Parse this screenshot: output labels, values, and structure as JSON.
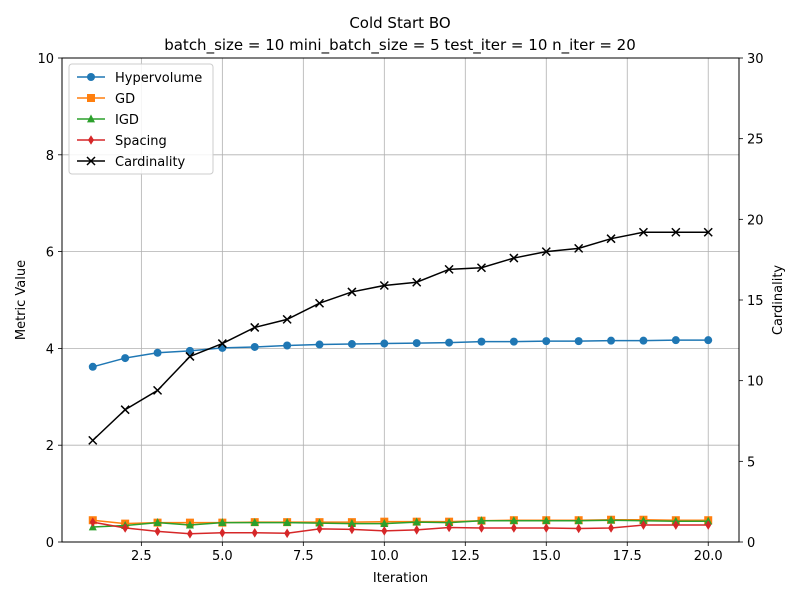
{
  "chart_data": {
    "type": "line",
    "title": "Cold Start BO",
    "subtitle": "batch_size = 10 mini_batch_size = 5 test_iter = 10 n_iter = 20",
    "xlabel": "Iteration",
    "ylabel": "Metric Value",
    "y2label": "Cardinality",
    "xlim": [
      0.05,
      20.95
    ],
    "ylim": [
      0,
      10
    ],
    "y2lim": [
      0,
      30
    ],
    "xticks": [
      2.5,
      5.0,
      7.5,
      10.0,
      12.5,
      15.0,
      17.5,
      20.0
    ],
    "xtick_labels": [
      "2.5",
      "5.0",
      "7.5",
      "10.0",
      "12.5",
      "15.0",
      "17.5",
      "20.0"
    ],
    "yticks": [
      0,
      2,
      4,
      6,
      8,
      10
    ],
    "ytick_labels": [
      "0",
      "2",
      "4",
      "6",
      "8",
      "10"
    ],
    "y2ticks": [
      0,
      5,
      10,
      15,
      20,
      25,
      30
    ],
    "y2tick_labels": [
      "0",
      "5",
      "10",
      "15",
      "20",
      "25",
      "30"
    ],
    "grid": true,
    "legend_position": "top-left",
    "x": [
      1,
      2,
      3,
      4,
      5,
      6,
      7,
      8,
      9,
      10,
      11,
      12,
      13,
      14,
      15,
      16,
      17,
      18,
      19,
      20
    ],
    "series": [
      {
        "name": "Hypervolume",
        "axis": "left",
        "color": "#1f77b4",
        "marker": "circle",
        "values": [
          3.62,
          3.8,
          3.91,
          3.95,
          4.01,
          4.03,
          4.06,
          4.08,
          4.09,
          4.1,
          4.11,
          4.12,
          4.14,
          4.14,
          4.15,
          4.15,
          4.16,
          4.16,
          4.17,
          4.17
        ]
      },
      {
        "name": "GD",
        "axis": "left",
        "color": "#ff7f0e",
        "marker": "square",
        "values": [
          0.45,
          0.38,
          0.4,
          0.4,
          0.4,
          0.41,
          0.41,
          0.41,
          0.41,
          0.42,
          0.42,
          0.42,
          0.44,
          0.45,
          0.45,
          0.45,
          0.46,
          0.46,
          0.45,
          0.45
        ]
      },
      {
        "name": "IGD",
        "axis": "left",
        "color": "#2ca02c",
        "marker": "triangle",
        "values": [
          0.31,
          0.34,
          0.4,
          0.35,
          0.4,
          0.4,
          0.4,
          0.39,
          0.38,
          0.38,
          0.41,
          0.4,
          0.44,
          0.44,
          0.44,
          0.44,
          0.45,
          0.44,
          0.43,
          0.43
        ]
      },
      {
        "name": "Spacing",
        "axis": "left",
        "color": "#d62728",
        "marker": "diamond",
        "values": [
          0.41,
          0.29,
          0.22,
          0.17,
          0.19,
          0.19,
          0.18,
          0.27,
          0.26,
          0.23,
          0.25,
          0.3,
          0.29,
          0.29,
          0.29,
          0.28,
          0.29,
          0.35,
          0.35,
          0.35
        ]
      },
      {
        "name": "Cardinality",
        "axis": "right",
        "color": "#000000",
        "marker": "x",
        "values": [
          6.3,
          8.2,
          9.4,
          11.5,
          12.3,
          13.3,
          13.8,
          14.8,
          15.5,
          15.9,
          16.1,
          16.9,
          17.0,
          17.6,
          18.0,
          18.2,
          18.8,
          19.2,
          19.2,
          19.2
        ]
      }
    ]
  }
}
